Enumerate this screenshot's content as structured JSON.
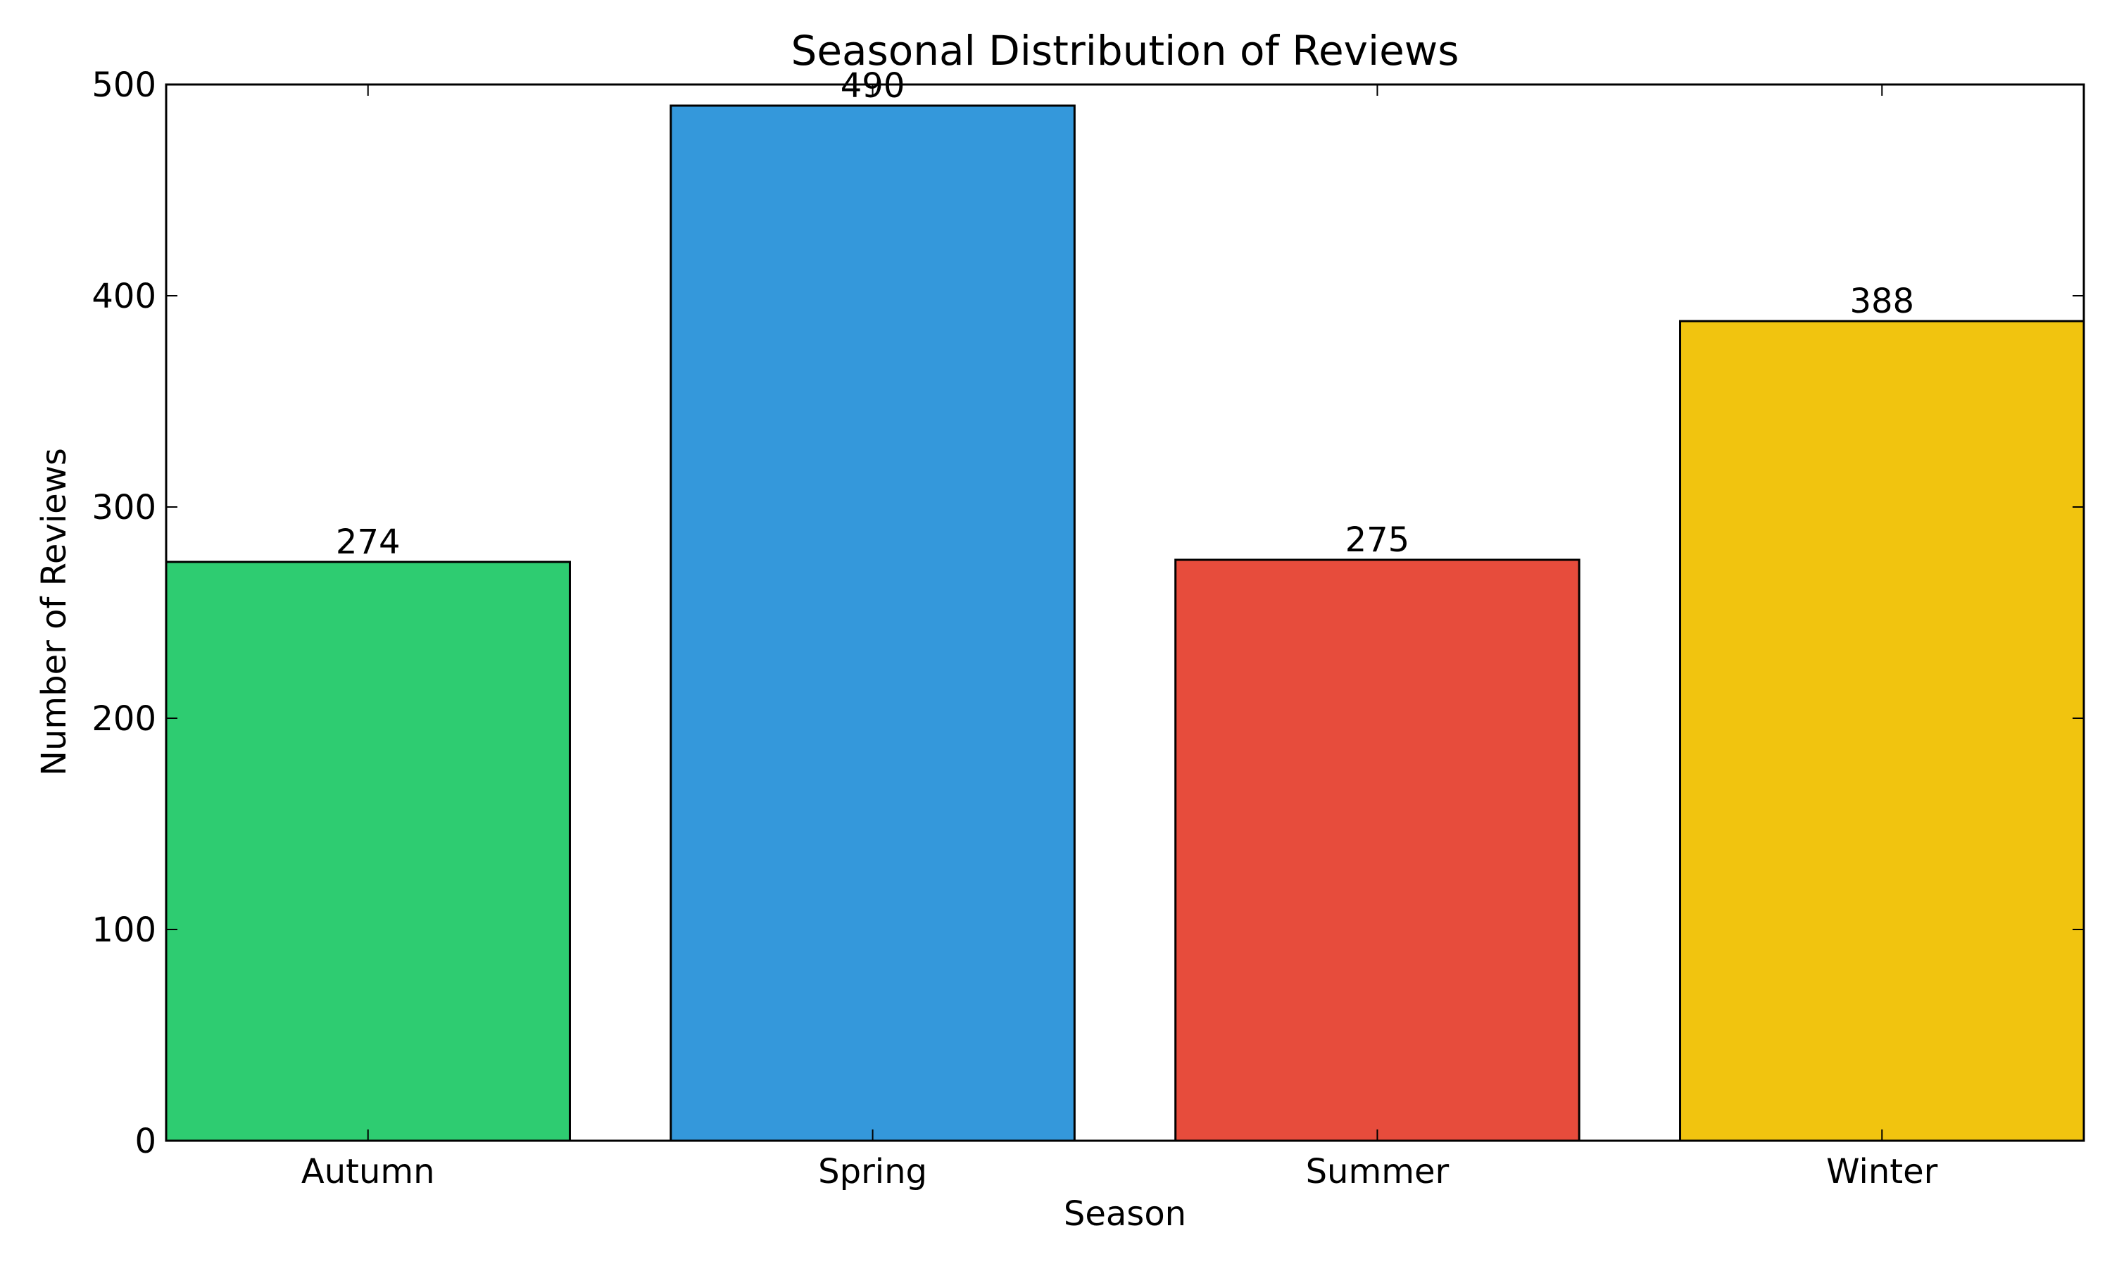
{
  "chart_data": {
    "type": "bar",
    "title": "Seasonal Distribution of Reviews",
    "xlabel": "Season",
    "ylabel": "Number of Reviews",
    "categories": [
      "Autumn",
      "Spring",
      "Summer",
      "Winter"
    ],
    "values": [
      274,
      490,
      275,
      388
    ],
    "data_labels": [
      "274",
      "490",
      "275",
      "388"
    ],
    "colors": [
      "#2ecc71",
      "#3498db",
      "#e74c3c",
      "#f1c40f"
    ],
    "ylim": [
      0,
      500
    ],
    "yticks": [
      0,
      100,
      200,
      300,
      400,
      500
    ],
    "ytick_labels": [
      "0",
      "100",
      "200",
      "300",
      "400",
      "500"
    ],
    "grid": false,
    "legend": "none"
  }
}
